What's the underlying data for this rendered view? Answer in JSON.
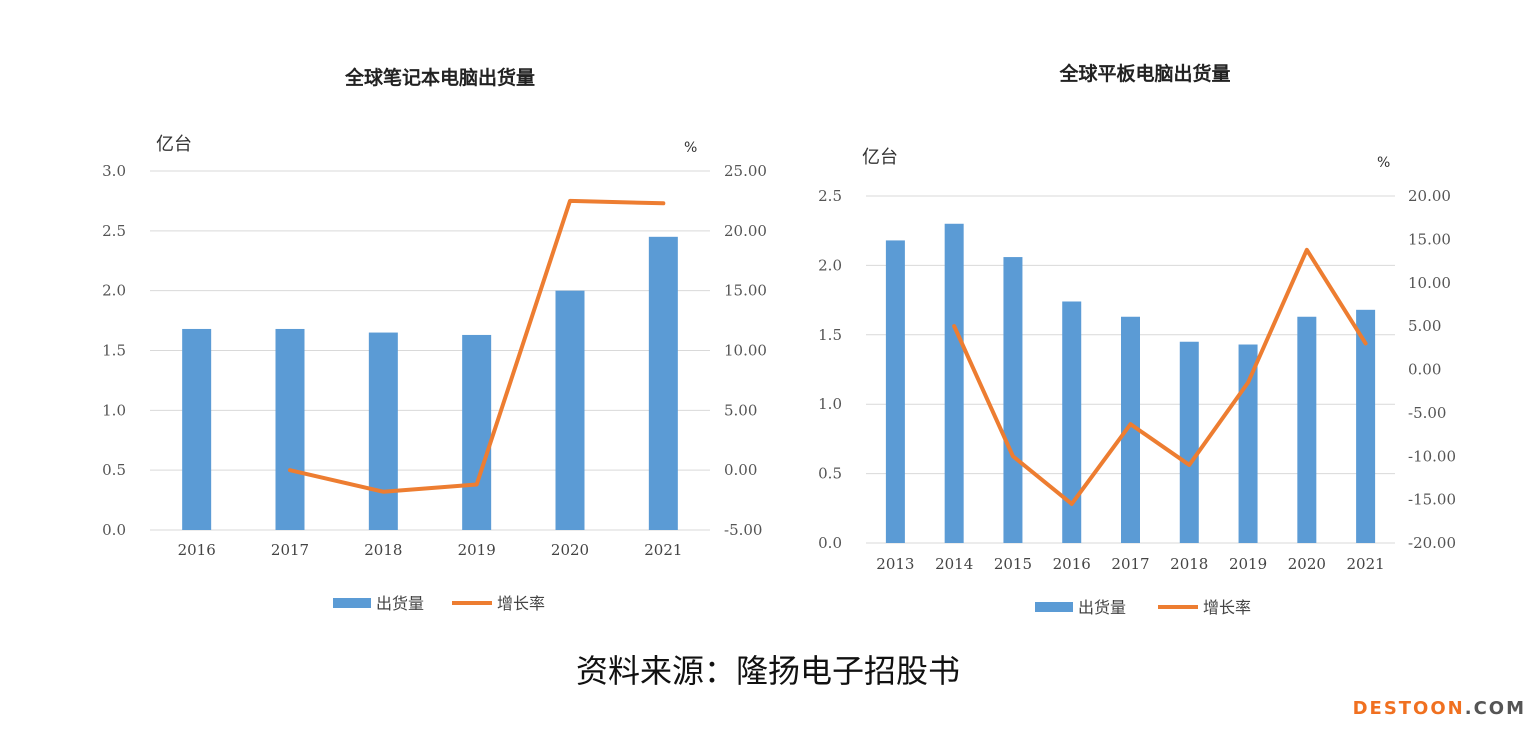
{
  "chart_data": [
    {
      "type": "bar+line",
      "title": "全球笔记本电脑出货量",
      "left_unit": "亿台",
      "right_unit": "%",
      "categories": [
        "2016",
        "2017",
        "2018",
        "2019",
        "2020",
        "2021"
      ],
      "series": [
        {
          "name": "出货量",
          "type": "bar",
          "axis": "left",
          "color": "#5b9bd5",
          "values": [
            1.68,
            1.68,
            1.65,
            1.63,
            2.0,
            2.45
          ]
        },
        {
          "name": "增长率",
          "type": "line",
          "axis": "right",
          "color": "#ed7d31",
          "values": [
            null,
            0.0,
            -1.8,
            -1.2,
            22.5,
            22.3
          ]
        }
      ],
      "ylim_left": [
        0,
        3.0
      ],
      "ylim_right": [
        -5,
        25
      ],
      "left_ticks": [
        "0.0",
        "0.5",
        "1.0",
        "1.5",
        "2.0",
        "2.5",
        "3.0"
      ],
      "right_ticks": [
        "-5.00",
        "0.00",
        "5.00",
        "10.00",
        "15.00",
        "20.00",
        "25.00"
      ],
      "legend": [
        "出货量",
        "增长率"
      ]
    },
    {
      "type": "bar+line",
      "title": "全球平板电脑出货量",
      "left_unit": "亿台",
      "right_unit": "%",
      "categories": [
        "2013",
        "2014",
        "2015",
        "2016",
        "2017",
        "2018",
        "2019",
        "2020",
        "2021"
      ],
      "series": [
        {
          "name": "出货量",
          "type": "bar",
          "axis": "left",
          "color": "#5b9bd5",
          "values": [
            2.18,
            2.3,
            2.06,
            1.74,
            1.63,
            1.45,
            1.43,
            1.63,
            1.68
          ]
        },
        {
          "name": "增长率",
          "type": "line",
          "axis": "right",
          "color": "#ed7d31",
          "values": [
            null,
            5.0,
            -10.0,
            -15.5,
            -6.3,
            -11.0,
            -1.5,
            13.8,
            3.0
          ]
        }
      ],
      "ylim_left": [
        0,
        2.5
      ],
      "ylim_right": [
        -20,
        20
      ],
      "left_ticks": [
        "0.0",
        "0.5",
        "1.0",
        "1.5",
        "2.0",
        "2.5"
      ],
      "right_ticks": [
        "-20.00",
        "-15.00",
        "-10.00",
        "-5.00",
        "0.00",
        "5.00",
        "10.00",
        "15.00",
        "20.00"
      ],
      "legend": [
        "出货量",
        "增长率"
      ]
    }
  ],
  "source": "资料来源：隆扬电子招股书",
  "watermark": {
    "part1": "DESTOON",
    "part2": ".COM"
  }
}
